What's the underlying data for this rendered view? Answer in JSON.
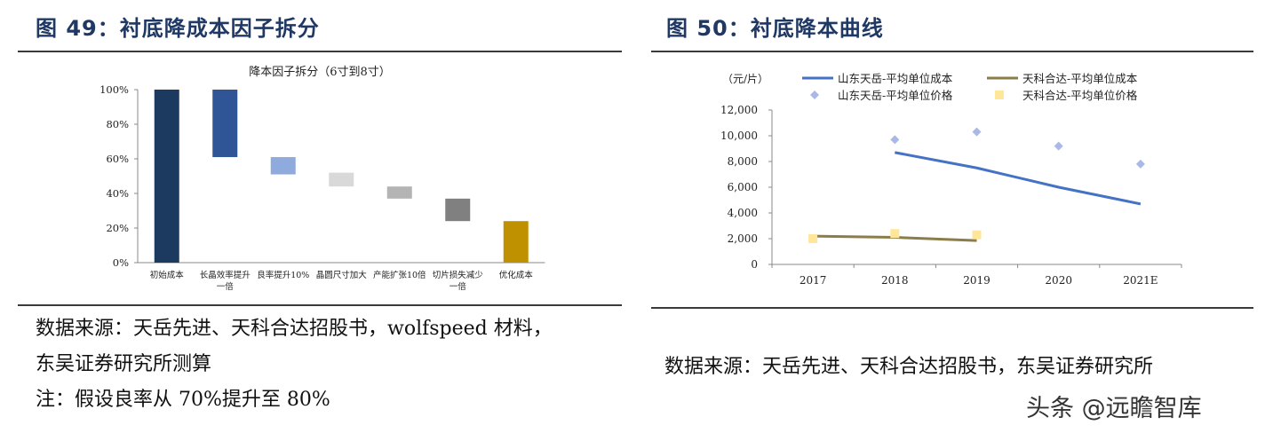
{
  "left_figure": {
    "heading": "图 49：衬底降成本因子拆分",
    "source_lines": [
      "数据来源：天岳先进、天科合达招股书，wolfspeed 材料，",
      "东吴证券研究所测算",
      "注：假设良率从 70%提升至 80%"
    ]
  },
  "right_figure": {
    "heading": "图 50：衬底降本曲线",
    "source_lines": [
      "数据来源：天岳先进、天科合达招股书，东吴证券研究所"
    ]
  },
  "watermark": "头条 @远瞻智库",
  "chart_data": [
    {
      "type": "bar",
      "subtype": "waterfall",
      "title": "降本因子拆分（6寸到8寸）",
      "categories": [
        [
          "初始成本"
        ],
        [
          "长晶效率提升",
          "一倍"
        ],
        [
          "良率提升10%"
        ],
        [
          "晶圆尺寸加大"
        ],
        [
          "产能扩张10倍"
        ],
        [
          "切片损失减少",
          "一倍"
        ],
        [
          "优化成本"
        ]
      ],
      "bars": [
        {
          "low": 0,
          "high": 1.0,
          "color": "#1c3a5f"
        },
        {
          "low": 0.61,
          "high": 1.0,
          "color": "#2f5597"
        },
        {
          "low": 0.51,
          "high": 0.61,
          "color": "#8faadc"
        },
        {
          "low": 0.44,
          "high": 0.52,
          "color": "#d9d9d9"
        },
        {
          "low": 0.37,
          "high": 0.44,
          "color": "#b4b4b4"
        },
        {
          "low": 0.24,
          "high": 0.37,
          "color": "#808080"
        },
        {
          "low": 0,
          "high": 0.24,
          "color": "#bf9000"
        }
      ],
      "ylim": [
        0,
        1.0
      ],
      "yticks": [
        "0%",
        "20%",
        "40%",
        "60%",
        "80%",
        "100%"
      ],
      "grid": false
    },
    {
      "type": "line",
      "ylabel": "（元/片）",
      "categories": [
        "2017",
        "2018",
        "2019",
        "2020",
        "2021E"
      ],
      "ylim": [
        0,
        12000
      ],
      "yticks": [
        "0",
        "2,000",
        "4,000",
        "6,000",
        "8,000",
        "10,000",
        "12,000"
      ],
      "legend_position": "top",
      "grid": false,
      "series": [
        {
          "name": "山东天岳-平均单位成本",
          "kind": "line",
          "color": "#4472c4",
          "values": [
            null,
            8700,
            7500,
            6000,
            4700
          ]
        },
        {
          "name": "天科合达-平均单位成本",
          "kind": "line",
          "color": "#8b7d4a",
          "values": [
            2200,
            2100,
            1850,
            null,
            null
          ]
        },
        {
          "name": "山东天岳-平均单位价格",
          "kind": "marker",
          "marker": "diamond",
          "color": "#a9b8e6",
          "values": [
            null,
            9700,
            10300,
            9200,
            7800
          ]
        },
        {
          "name": "天科合达-平均单位价格",
          "kind": "marker",
          "marker": "square",
          "color": "#ffe699",
          "values": [
            2000,
            2400,
            2300,
            null,
            null
          ]
        }
      ]
    }
  ]
}
